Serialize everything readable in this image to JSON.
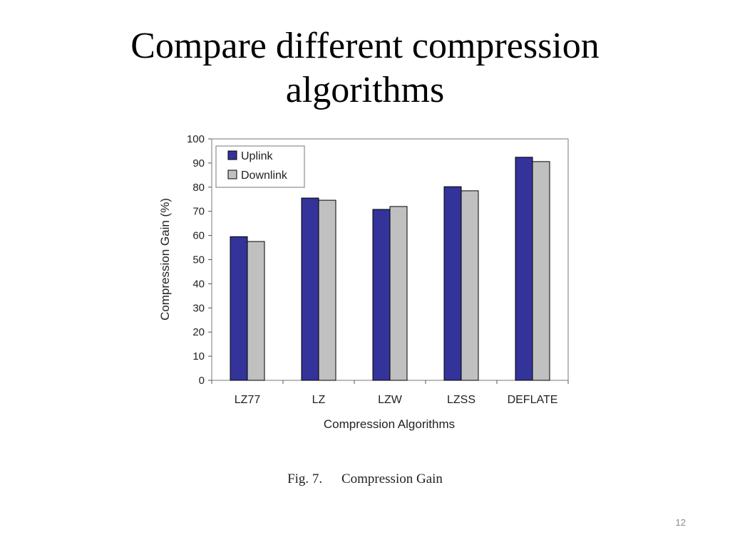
{
  "slide": {
    "title_line1": "Compare different compression",
    "title_line2": "algorithms",
    "caption_label": "Fig. 7.",
    "caption_text": "Compression Gain",
    "page_number": "12"
  },
  "colors": {
    "uplink": "#333399",
    "downlink": "#c0c0c0",
    "bar_stroke": "#000000",
    "axis": "#555555"
  },
  "chart_data": {
    "type": "bar",
    "title": "",
    "xlabel": "Compression Algorithms",
    "ylabel": "Compression Gain (%)",
    "ylim": [
      0,
      100
    ],
    "yticks": [
      0,
      10,
      20,
      30,
      40,
      50,
      60,
      70,
      80,
      90,
      100
    ],
    "grid": false,
    "legend_position": "top-left",
    "categories": [
      "LZ77",
      "LZ",
      "LZW",
      "LZSS",
      "DEFLATE"
    ],
    "series": [
      {
        "name": "Uplink",
        "values": [
          59.5,
          75.5,
          70.8,
          80.2,
          92.4
        ]
      },
      {
        "name": "Downlink",
        "values": [
          57.5,
          74.6,
          72.0,
          78.5,
          90.6
        ]
      }
    ]
  }
}
